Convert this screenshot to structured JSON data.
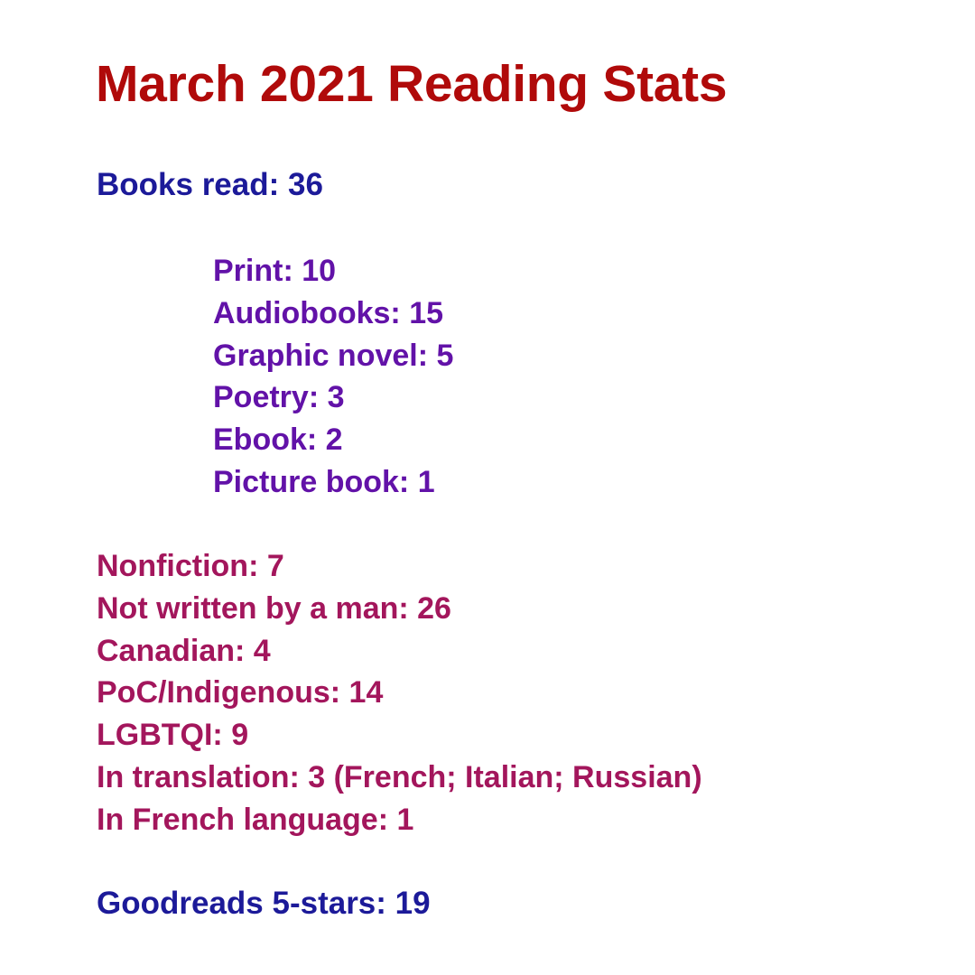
{
  "colors": {
    "title": "#b00a0a",
    "blue": "#1c1a99",
    "purple": "#6212a8",
    "magenta": "#a3165c"
  },
  "title": "March 2021 Reading Stats",
  "books_read": "Books read: 36",
  "formats": [
    "Print: 10",
    "Audiobooks: 15",
    "Graphic novel: 5",
    "Poetry: 3",
    "Ebook: 2",
    "Picture book: 1"
  ],
  "categories": [
    "Nonfiction: 7",
    "Not written by a man: 26",
    "Canadian: 4",
    "PoC/Indigenous: 14",
    "LGBTQI: 9",
    "In translation: 3 (French; Italian; Russian)",
    "In French language: 1"
  ],
  "goodreads": "Goodreads 5-stars: 19"
}
